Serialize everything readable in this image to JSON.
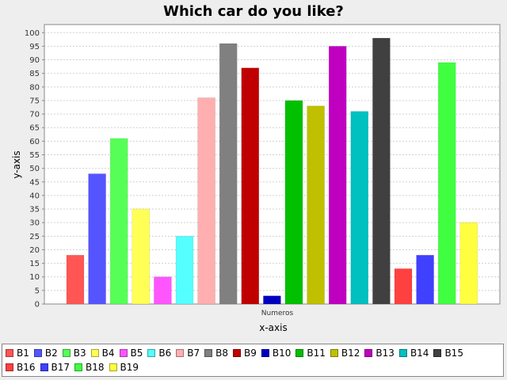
{
  "chart_data": {
    "type": "bar",
    "title": "Which car do you like?",
    "xlabel": "x-axis",
    "ylabel": "y-axis",
    "category": "Numeros",
    "ylim": [
      0,
      103
    ],
    "ytick_step": 5,
    "ytick_max": 100,
    "grid": true,
    "legend_position": "bottom",
    "series": [
      {
        "name": "B1",
        "value": 18,
        "color": "#ff5555"
      },
      {
        "name": "B2",
        "value": 48,
        "color": "#5555ff"
      },
      {
        "name": "B3",
        "value": 61,
        "color": "#55ff55"
      },
      {
        "name": "B4",
        "value": 35,
        "color": "#ffff55"
      },
      {
        "name": "B5",
        "value": 10,
        "color": "#ff55ff"
      },
      {
        "name": "B6",
        "value": 25,
        "color": "#55ffff"
      },
      {
        "name": "B7",
        "value": 76,
        "color": "#ffafaf"
      },
      {
        "name": "B8",
        "value": 96,
        "color": "#808080"
      },
      {
        "name": "B9",
        "value": 87,
        "color": "#c00000"
      },
      {
        "name": "B10",
        "value": 3,
        "color": "#0000c0"
      },
      {
        "name": "B11",
        "value": 75,
        "color": "#00c000"
      },
      {
        "name": "B12",
        "value": 73,
        "color": "#c0c000"
      },
      {
        "name": "B13",
        "value": 95,
        "color": "#c000c0"
      },
      {
        "name": "B14",
        "value": 71,
        "color": "#00c0c0"
      },
      {
        "name": "B15",
        "value": 98,
        "color": "#404040"
      },
      {
        "name": "B16",
        "value": 13,
        "color": "#ff4040"
      },
      {
        "name": "B17",
        "value": 18,
        "color": "#4040ff"
      },
      {
        "name": "B18",
        "value": 89,
        "color": "#40ff40"
      },
      {
        "name": "B19",
        "value": 30,
        "color": "#ffff40"
      }
    ]
  }
}
